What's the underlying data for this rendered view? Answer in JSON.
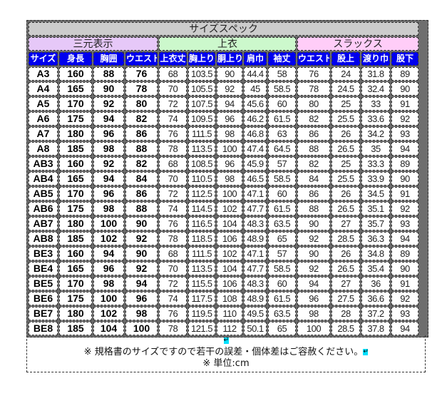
{
  "title": "サイズスペック",
  "groups": [
    "三元表示",
    "上衣",
    "スラックス"
  ],
  "headers": [
    "サイズ",
    "身長",
    "胸囲",
    "ウエスト",
    "上衣丈",
    "胸上り",
    "胴上り",
    "肩巾",
    "袖丈",
    "ウエスト",
    "股上",
    "渡り巾",
    "股下"
  ],
  "rows": [
    [
      "A3",
      "160",
      "88",
      "76",
      "68",
      "103.5",
      "90",
      "44.4",
      "58",
      "76",
      "24",
      "31.8",
      "89"
    ],
    [
      "A4",
      "165",
      "90",
      "78",
      "70",
      "105.5",
      "92",
      "45",
      "58.5",
      "78",
      "24.5",
      "32.4",
      "90"
    ],
    [
      "A5",
      "170",
      "92",
      "80",
      "72",
      "107.5",
      "94",
      "45.6",
      "60",
      "80",
      "25",
      "33",
      "91"
    ],
    [
      "A6",
      "175",
      "94",
      "82",
      "74",
      "109.5",
      "96",
      "46.2",
      "61.5",
      "82",
      "25.5",
      "33.6",
      "92"
    ],
    [
      "A7",
      "180",
      "96",
      "86",
      "76",
      "111.5",
      "98",
      "46.8",
      "63",
      "86",
      "26",
      "34.2",
      "93"
    ],
    [
      "A8",
      "185",
      "98",
      "88",
      "78",
      "113.5",
      "100",
      "47.4",
      "64.5",
      "88",
      "26.5",
      "35",
      "94"
    ],
    [
      "AB3",
      "160",
      "92",
      "82",
      "68",
      "108.5",
      "96",
      "45.9",
      "57",
      "82",
      "25",
      "33.3",
      "89"
    ],
    [
      "AB4",
      "165",
      "94",
      "84",
      "70",
      "110.5",
      "98",
      "46.5",
      "58.5",
      "84",
      "25.5",
      "33.9",
      "90"
    ],
    [
      "AB5",
      "170",
      "96",
      "86",
      "72",
      "112.5",
      "100",
      "47.1",
      "60",
      "86",
      "26",
      "34.5",
      "91"
    ],
    [
      "AB6",
      "175",
      "98",
      "88",
      "74",
      "114.5",
      "102",
      "47.7",
      "61.5",
      "88",
      "26.5",
      "35.1",
      "92"
    ],
    [
      "AB7",
      "180",
      "100",
      "90",
      "76",
      "116.5",
      "104",
      "48.3",
      "63.5",
      "90",
      "27",
      "35.7",
      "93"
    ],
    [
      "AB8",
      "185",
      "102",
      "92",
      "78",
      "118.5",
      "106",
      "48.9",
      "65",
      "92",
      "28.5",
      "36.3",
      "94"
    ],
    [
      "BE3",
      "160",
      "94",
      "90",
      "68",
      "111.5",
      "102",
      "47.1",
      "57",
      "90",
      "26",
      "34.8",
      "89"
    ],
    [
      "BE4",
      "165",
      "96",
      "92",
      "70",
      "113.5",
      "104",
      "47.7",
      "58.5",
      "92",
      "26.5",
      "35.4",
      "90"
    ],
    [
      "BE5",
      "170",
      "98",
      "94",
      "72",
      "115.5",
      "106",
      "48.3",
      "60",
      "94",
      "27",
      "36",
      "91"
    ],
    [
      "BE6",
      "175",
      "100",
      "96",
      "74",
      "117.5",
      "108",
      "48.9",
      "61.5",
      "96",
      "27.5",
      "36.6",
      "92"
    ],
    [
      "BE7",
      "180",
      "102",
      "98",
      "76",
      "119.5",
      "110",
      "49.5",
      "63.5",
      "98",
      "28",
      "37.2",
      "93"
    ],
    [
      "BE8",
      "185",
      "104",
      "100",
      "78",
      "121.5",
      "112",
      "50.1",
      "65",
      "100",
      "28.5",
      "37.8",
      "94"
    ]
  ],
  "note": {
    "line1": "※ 規格書のサイズですので若干の誤差・個体差はご容赦ください。",
    "line2": "※ 単位:cm"
  },
  "colors": {
    "header_bg": "#0000ee",
    "group1_bg": "#e6c8f8",
    "group2_bg": "#ccf8cc",
    "group3_bg": "#ffcdf8",
    "title_bg": "#cccccc"
  },
  "icons": {
    "return_mark": "return-arrow-icon"
  }
}
